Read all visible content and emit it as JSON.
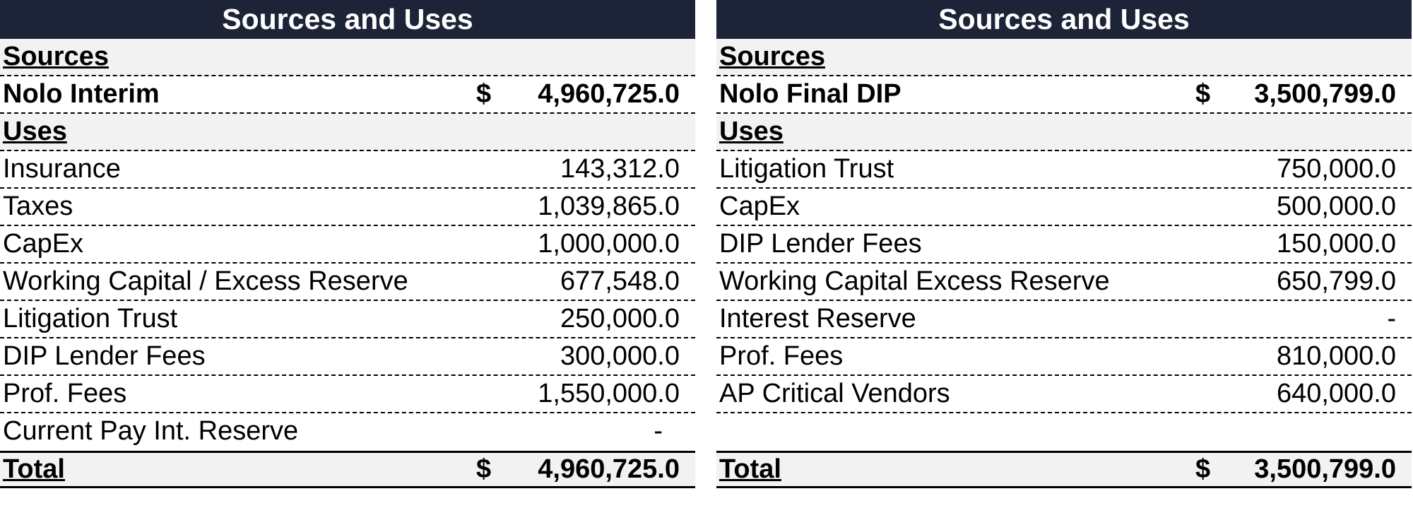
{
  "left": {
    "title": "Sources and Uses",
    "sources_label": "Sources",
    "source": {
      "label": "Nolo Interim",
      "currency": "$",
      "value": "4,960,725.0"
    },
    "uses_label": "Uses",
    "uses": [
      {
        "label": "Insurance",
        "value": "143,312.0"
      },
      {
        "label": "Taxes",
        "value": "1,039,865.0"
      },
      {
        "label": "CapEx",
        "value": "1,000,000.0"
      },
      {
        "label": "Working Capital / Excess Reserve",
        "value": "677,548.0"
      },
      {
        "label": "Litigation Trust",
        "value": "250,000.0"
      },
      {
        "label": "DIP Lender Fees",
        "value": "300,000.0"
      },
      {
        "label": "Prof. Fees",
        "value": "1,550,000.0"
      },
      {
        "label": "Current Pay Int. Reserve",
        "value": "-"
      }
    ],
    "total": {
      "label": "Total",
      "currency": "$",
      "value": "4,960,725.0"
    }
  },
  "right": {
    "title": "Sources and Uses",
    "sources_label": "Sources",
    "source": {
      "label": "Nolo Final DIP",
      "currency": "$",
      "value": "3,500,799.0"
    },
    "uses_label": "Uses",
    "uses": [
      {
        "label": "Litigation Trust",
        "value": "750,000.0"
      },
      {
        "label": "CapEx",
        "value": "500,000.0"
      },
      {
        "label": "DIP Lender Fees",
        "value": "150,000.0"
      },
      {
        "label": "Working Capital Excess Reserve",
        "value": "650,799.0"
      },
      {
        "label": "Interest Reserve",
        "value": "-"
      },
      {
        "label": "Prof. Fees",
        "value": "810,000.0"
      },
      {
        "label": "AP Critical Vendors",
        "value": "640,000.0"
      }
    ],
    "total": {
      "label": "Total",
      "currency": "$",
      "value": "3,500,799.0"
    }
  }
}
